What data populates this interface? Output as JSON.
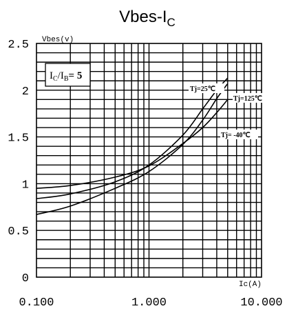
{
  "chart_data": {
    "type": "line",
    "title": "Vbes-IC",
    "title_main": "Vbes-I",
    "title_sub": "C",
    "ylabel": "Vbes(v)",
    "xlabel": "Ic(A)",
    "x_scale": "log",
    "xlim": [
      0.1,
      10
    ],
    "ylim": [
      0,
      2.5
    ],
    "x_ticks": [
      0.1,
      1,
      10
    ],
    "x_tick_labels": [
      "0.100",
      "1.000",
      "10.000"
    ],
    "y_ticks": [
      0,
      0.5,
      1,
      1.5,
      2,
      2.5
    ],
    "y_tick_labels": [
      "0",
      "0.5",
      "1",
      "1.5",
      "2",
      "2.5"
    ],
    "grid": true,
    "annotation": {
      "label": "IC/IB= 5",
      "i1": "I",
      "s1": "C",
      "slash": "/I",
      "s2": "B",
      "rest": "= 5"
    },
    "series": [
      {
        "name": "Tj=25℃",
        "x": [
          0.1,
          0.2,
          0.5,
          1,
          2,
          3,
          4,
          5
        ],
        "y": [
          0.84,
          0.89,
          1.02,
          1.2,
          1.52,
          1.8,
          2.0,
          2.13
        ]
      },
      {
        "name": "Tj=125℃",
        "x": [
          0.1,
          0.2,
          0.5,
          1,
          2,
          3,
          4,
          5
        ],
        "y": [
          0.67,
          0.76,
          0.95,
          1.13,
          1.42,
          1.68,
          1.91,
          2.07
        ]
      },
      {
        "name": "Tj= -40℃",
        "x": [
          0.1,
          0.2,
          0.5,
          1,
          2,
          3,
          4,
          5
        ],
        "y": [
          0.95,
          0.98,
          1.07,
          1.19,
          1.43,
          1.6,
          1.76,
          1.9
        ]
      }
    ]
  }
}
